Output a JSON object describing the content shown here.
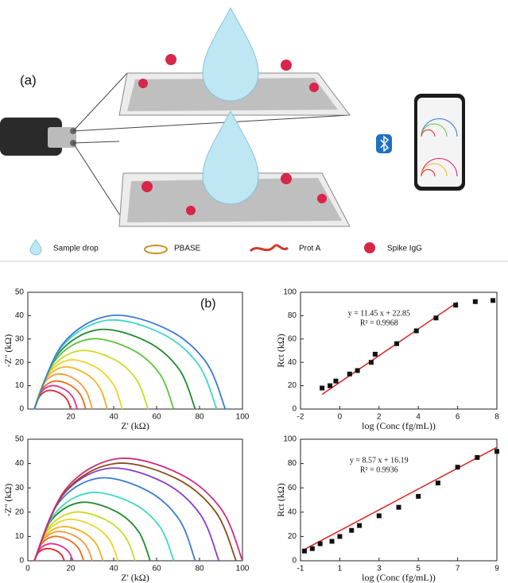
{
  "panel_a": {
    "label": "(a)",
    "legend": [
      "Sample drop",
      "PBASE",
      "Prot A",
      "Spike IgG"
    ]
  },
  "chart_data": [
    {
      "type": "line",
      "annotation": "(b)",
      "xlabel": "Z' (kΩ)",
      "ylabel": "-Z'' (kΩ)",
      "xlim": [
        0,
        100
      ],
      "ylim": [
        0,
        50
      ],
      "xticks": [
        20,
        40,
        60,
        80,
        100
      ],
      "yticks": [
        0,
        10,
        20,
        30,
        40,
        50
      ],
      "series": [
        {
          "color": "#e8202a",
          "x": [
            3,
            5.6,
            9.8,
            14.9,
            18.3,
            20
          ],
          "values": [
            0,
            5.6,
            8,
            6.8,
            4,
            0
          ]
        },
        {
          "color": "#e0309a",
          "x": [
            3,
            6,
            11,
            17,
            21,
            23
          ],
          "values": [
            0,
            7,
            10,
            8.5,
            5,
            0
          ]
        },
        {
          "color": "#f06a1a",
          "x": [
            3,
            6.6,
            12.6,
            19.8,
            24.6,
            27
          ],
          "values": [
            0,
            8.4,
            12,
            10.2,
            6,
            0
          ]
        },
        {
          "color": "#f39a3a",
          "x": [
            3,
            7.1,
            13.8,
            21.9,
            27.3,
            30
          ],
          "values": [
            0,
            10.5,
            15,
            12.8,
            7.5,
            0
          ]
        },
        {
          "color": "#f7b21e",
          "x": [
            3,
            8.1,
            16.6,
            26.8,
            33.6,
            37
          ],
          "values": [
            0,
            12.6,
            18,
            15.3,
            9,
            0
          ]
        },
        {
          "color": "#f3d31a",
          "x": [
            3,
            9.2,
            19.4,
            31.7,
            39.9,
            44
          ],
          "values": [
            0,
            14.7,
            21,
            17.9,
            10.5,
            0
          ]
        },
        {
          "color": "#c8dc1e",
          "x": [
            3,
            11,
            24.2,
            40.1,
            50.7,
            56
          ],
          "values": [
            0,
            17.5,
            25,
            21.3,
            12.5,
            0
          ]
        },
        {
          "color": "#5cc43a",
          "x": [
            3,
            12.8,
            29,
            48.5,
            61.5,
            68
          ],
          "values": [
            0,
            21,
            30,
            25.5,
            15,
            0
          ]
        },
        {
          "color": "#1e8a2a",
          "x": [
            3,
            14.3,
            33,
            55.5,
            70.5,
            78
          ],
          "values": [
            0,
            23.8,
            34,
            28.9,
            17,
            0
          ]
        },
        {
          "color": "#3ed8c4",
          "x": [
            3,
            15.8,
            37,
            62.5,
            79.5,
            88
          ],
          "values": [
            0,
            26.6,
            38,
            32.3,
            19,
            0
          ]
        },
        {
          "color": "#3a7ad8",
          "x": [
            3,
            16.4,
            38.6,
            65.3,
            83.1,
            92
          ],
          "values": [
            0,
            28,
            40,
            34,
            20,
            0
          ]
        }
      ]
    },
    {
      "type": "scatter",
      "xlabel": "log (Conc (fg/mL))",
      "ylabel": "Rct (kΩ)",
      "equation": "y = 11.45 x + 22.85",
      "r_squared": "R² = 0.9968",
      "xlim": [
        -2,
        8
      ],
      "ylim": [
        0,
        100
      ],
      "xticks": [
        -2,
        0,
        2,
        4,
        6,
        8
      ],
      "yticks": [
        0,
        20,
        40,
        60,
        80,
        100
      ],
      "points": {
        "color": "#111111",
        "x": [
          -0.9,
          -0.5,
          -0.2,
          0.5,
          0.9,
          1.6,
          1.8,
          2.9,
          3.9,
          4.9,
          5.9,
          6.9,
          7.8
        ],
        "values": [
          18,
          20,
          24,
          30,
          33,
          40,
          47,
          56,
          67,
          78,
          89,
          92,
          93
        ]
      },
      "fit": {
        "color": "#e02020",
        "x": [
          -0.9,
          6
        ],
        "values": [
          12.55,
          91.55
        ]
      }
    },
    {
      "type": "line",
      "xlabel": "Z' (kΩ)",
      "ylabel": "-Z'' (kΩ)",
      "xlim": [
        0,
        100
      ],
      "ylim": [
        0,
        50
      ],
      "xticks": [
        0,
        20,
        40,
        60,
        80,
        100
      ],
      "yticks": [
        0,
        10,
        20,
        30,
        40,
        50
      ],
      "series": [
        {
          "color": "#e8202a",
          "x": [
            3,
            5.1,
            8.6,
            12.8,
            15.6,
            17
          ],
          "values": [
            0,
            3.5,
            5,
            4.3,
            2.5,
            0
          ]
        },
        {
          "color": "#e0309a",
          "x": [
            3,
            5.7,
            10.2,
            15.6,
            19.2,
            21
          ],
          "values": [
            0,
            4.9,
            7,
            6,
            3.5,
            0
          ]
        },
        {
          "color": "#f06a1a",
          "x": [
            3,
            6.5,
            12.2,
            19.1,
            23.7,
            26
          ],
          "values": [
            0,
            7,
            10,
            8.5,
            5,
            0
          ]
        },
        {
          "color": "#f39a3a",
          "x": [
            3,
            7.1,
            13.8,
            21.9,
            27.3,
            30
          ],
          "values": [
            0,
            8.4,
            12,
            10.2,
            6,
            0
          ]
        },
        {
          "color": "#f7b21e",
          "x": [
            3,
            7.8,
            15.8,
            25.4,
            31.8,
            35
          ],
          "values": [
            0,
            9.8,
            14,
            11.9,
            7,
            0
          ]
        },
        {
          "color": "#f3d31a",
          "x": [
            3,
            8.9,
            18.6,
            30.3,
            38.1,
            42
          ],
          "values": [
            0,
            11.9,
            17,
            14.5,
            8.5,
            0
          ]
        },
        {
          "color": "#c8dc1e",
          "x": [
            3,
            10.1,
            21.8,
            35.9,
            45.3,
            50
          ],
          "values": [
            0,
            14,
            20,
            17,
            10,
            0
          ]
        },
        {
          "color": "#1e8a2a",
          "x": [
            3,
            11.1,
            24.6,
            40.8,
            51.6,
            57
          ],
          "values": [
            0,
            16.8,
            24,
            20.4,
            12,
            0
          ]
        },
        {
          "color": "#3ed8c4",
          "x": [
            3,
            12.8,
            29,
            48.5,
            61.5,
            68
          ],
          "values": [
            0,
            19.6,
            28,
            23.8,
            14,
            0
          ]
        },
        {
          "color": "#3a7ad8",
          "x": [
            3,
            14.3,
            33,
            55.5,
            70.5,
            78
          ],
          "values": [
            0,
            23.8,
            34,
            28.9,
            17,
            0
          ]
        },
        {
          "color": "#8a3ac8",
          "x": [
            3,
            15.9,
            37.4,
            63.2,
            80.4,
            89
          ],
          "values": [
            0,
            26.6,
            38,
            32.3,
            19,
            0
          ]
        },
        {
          "color": "#8a4a1a",
          "x": [
            3,
            17.1,
            40.6,
            68.8,
            87.6,
            97
          ],
          "values": [
            0,
            28,
            40,
            34,
            20,
            0
          ]
        },
        {
          "color": "#d02a7a",
          "x": [
            3,
            17.6,
            41.8,
            70.9,
            90.3,
            100
          ],
          "values": [
            0,
            29.4,
            42,
            35.7,
            21,
            0
          ]
        }
      ]
    },
    {
      "type": "scatter",
      "xlabel": "log (Conc (fg/mL))",
      "ylabel": "Rct (kΩ)",
      "equation": "y = 8.57 x + 16.19",
      "r_squared": "R² = 0.9936",
      "xlim": [
        -1,
        9
      ],
      "ylim": [
        0,
        100
      ],
      "xticks": [
        -1,
        1,
        3,
        5,
        7,
        9
      ],
      "yticks": [
        0,
        20,
        40,
        60,
        80,
        100
      ],
      "points": {
        "color": "#111111",
        "x": [
          -0.8,
          -0.4,
          0,
          0.6,
          1,
          1.6,
          2,
          3,
          4,
          5,
          6,
          7,
          8,
          9
        ],
        "values": [
          8,
          10,
          14,
          16,
          20,
          25,
          29,
          37,
          44,
          53,
          64,
          77,
          85,
          90
        ]
      },
      "fit": {
        "color": "#e02020",
        "x": [
          -0.9,
          9
        ],
        "values": [
          8.48,
          93.32
        ]
      }
    }
  ]
}
